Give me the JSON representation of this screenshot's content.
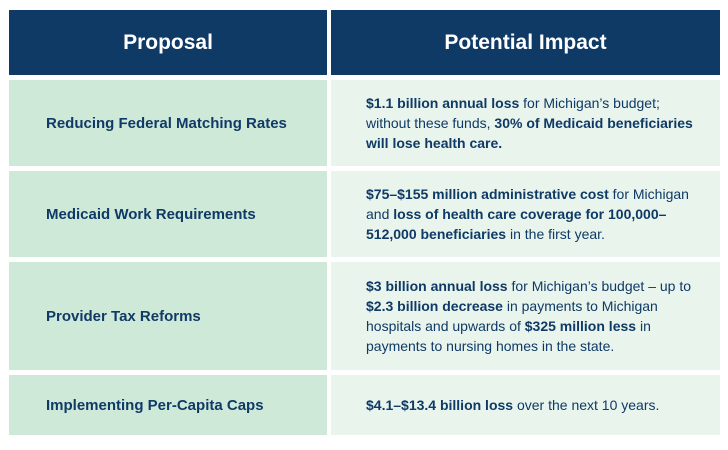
{
  "header": {
    "col1": "Proposal",
    "col2": "Potential Impact"
  },
  "rows": [
    {
      "proposal": "Reducing Federal Matching Rates",
      "impact": [
        {
          "t": "$1.1 billion annual loss",
          "b": true
        },
        {
          "t": " for Michigan’s budget; without these funds, ",
          "b": false
        },
        {
          "t": "30% of Medicaid beneficiaries will lose health care.",
          "b": true
        }
      ]
    },
    {
      "proposal": "Medicaid Work Requirements",
      "impact": [
        {
          "t": "$75–$155 million administrative cost",
          "b": true
        },
        {
          "t": " for Michigan and ",
          "b": false
        },
        {
          "t": "loss of health care coverage for 100,000–512,000 beneficiaries",
          "b": true
        },
        {
          "t": " in the first year.",
          "b": false
        }
      ]
    },
    {
      "proposal": "Provider Tax Reforms",
      "impact": [
        {
          "t": "$3 billion annual loss",
          "b": true
        },
        {
          "t": " for Michigan’s budget – up to ",
          "b": false
        },
        {
          "t": "$2.3 billion decrease",
          "b": true
        },
        {
          "t": " in payments to Michigan hospitals and upwards of ",
          "b": false
        },
        {
          "t": "$325 million less",
          "b": true
        },
        {
          "t": " in payments to nursing homes in the state.",
          "b": false
        }
      ]
    },
    {
      "proposal": "Implementing Per-Capita Caps",
      "impact": [
        {
          "t": "$4.1–$13.4 billion loss",
          "b": true
        },
        {
          "t": " over the next 10 years.",
          "b": false
        }
      ]
    }
  ]
}
